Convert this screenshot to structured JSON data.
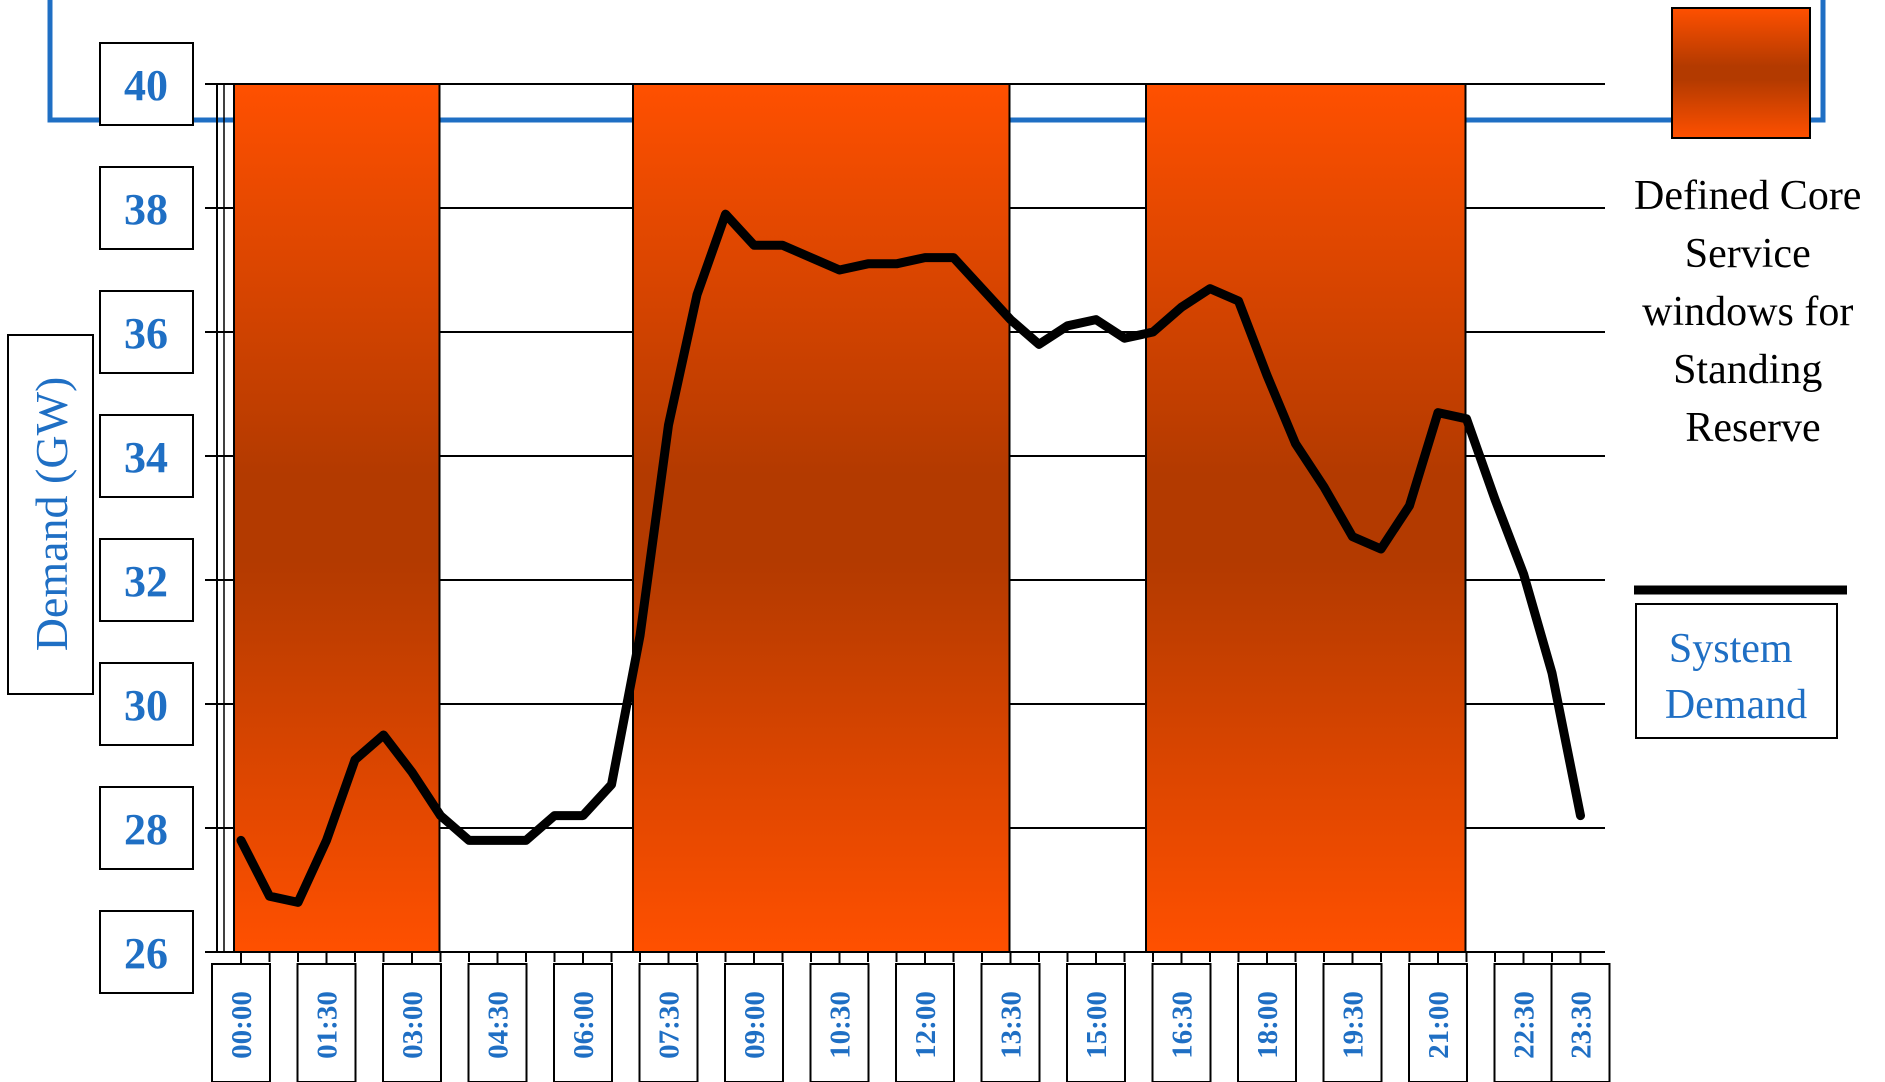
{
  "chart_data": {
    "type": "line",
    "title": "",
    "xlabel": "",
    "ylabel": "Demand (GW)",
    "ylim": [
      26,
      40
    ],
    "y_ticks": [
      "40",
      "38",
      "36",
      "34",
      "32",
      "30",
      "28",
      "26"
    ],
    "x_tick_labels": [
      "00:00",
      "01:30",
      "03:00",
      "04:30",
      "06:00",
      "07:30",
      "09:00",
      "10:30",
      "12:00",
      "13:30",
      "15:00",
      "16:30",
      "18:00",
      "19:30",
      "21:00",
      "22:30",
      "23:30"
    ],
    "x_tick_hours": [
      0,
      1.5,
      3,
      4.5,
      6,
      7.5,
      9,
      10.5,
      12,
      13.5,
      15,
      16.5,
      18,
      19.5,
      21,
      22.5,
      23.5
    ],
    "grid": true,
    "legend_position": "right",
    "windows": {
      "name": "Defined Core Service windows for Standing Reserve",
      "label_lines": [
        "Defined Core",
        "Service",
        "windows for",
        "Standing",
        "Reserve"
      ],
      "color_edge": "#ff5000",
      "color_center": "#b33a00",
      "ranges_hours": [
        [
          0,
          3.5
        ],
        [
          7,
          13.5
        ],
        [
          16,
          21.5
        ]
      ]
    },
    "series": [
      {
        "name": "System Demand",
        "label_lines": [
          "System",
          "Demand"
        ],
        "color": "#000000",
        "x_hours": [
          0,
          0.5,
          1,
          1.5,
          2,
          2.5,
          3,
          3.5,
          4,
          4.5,
          5,
          5.5,
          6,
          6.5,
          7,
          7.5,
          8,
          8.5,
          9,
          9.5,
          10,
          10.5,
          11,
          11.5,
          12,
          12.5,
          13,
          13.5,
          14,
          14.5,
          15,
          15.5,
          16,
          16.5,
          17,
          17.5,
          18,
          18.5,
          19,
          19.5,
          20,
          20.5,
          21,
          21.5,
          22,
          22.5,
          23,
          23.5
        ],
        "values": [
          27.8,
          26.9,
          26.8,
          27.8,
          29.1,
          29.5,
          28.9,
          28.2,
          27.8,
          27.8,
          27.8,
          28.2,
          28.2,
          28.7,
          31.1,
          34.5,
          36.6,
          37.9,
          37.4,
          37.4,
          37.2,
          37.0,
          37.1,
          37.1,
          37.2,
          37.2,
          36.7,
          36.2,
          35.8,
          36.1,
          36.2,
          35.9,
          36.0,
          36.4,
          36.7,
          36.5,
          35.3,
          34.2,
          33.5,
          32.7,
          32.5,
          33.2,
          34.7,
          34.6,
          33.3,
          32.1,
          30.5,
          28.2
        ]
      }
    ]
  }
}
